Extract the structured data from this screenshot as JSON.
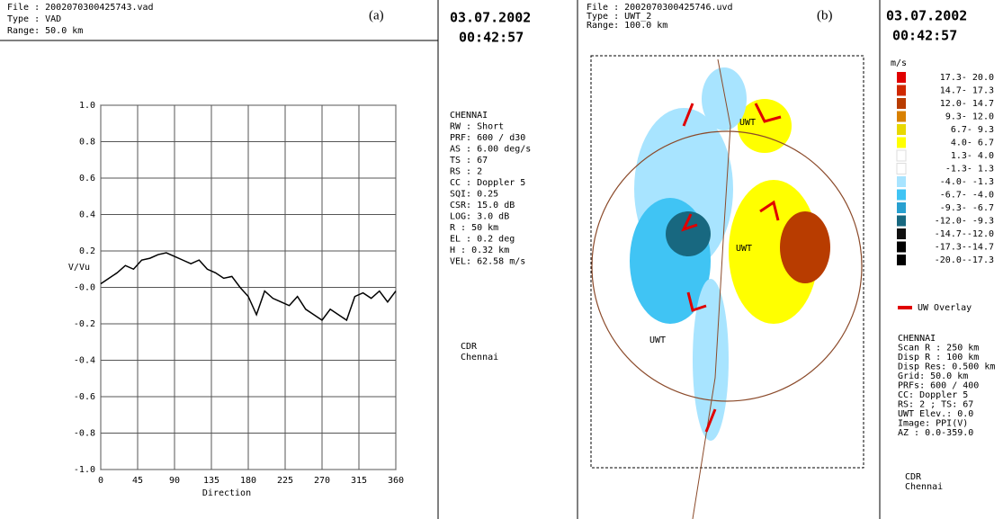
{
  "chart_data": {
    "type": "line",
    "panel_label": "(a)",
    "y_label": "V/Vu",
    "x_label": "Direction",
    "x": [
      0,
      10,
      20,
      30,
      40,
      50,
      60,
      70,
      80,
      90,
      100,
      110,
      120,
      130,
      140,
      150,
      160,
      170,
      180,
      190,
      200,
      210,
      220,
      230,
      240,
      250,
      260,
      270,
      280,
      290,
      300,
      310,
      320,
      330,
      340,
      350,
      360
    ],
    "values": [
      0.02,
      0.05,
      0.08,
      0.12,
      0.1,
      0.15,
      0.16,
      0.18,
      0.19,
      0.17,
      0.15,
      0.13,
      0.15,
      0.1,
      0.08,
      0.05,
      0.06,
      0.0,
      -0.05,
      -0.15,
      -0.02,
      -0.06,
      -0.08,
      -0.1,
      -0.05,
      -0.12,
      -0.15,
      -0.18,
      -0.12,
      -0.15,
      -0.18,
      -0.05,
      -0.03,
      -0.06,
      -0.02,
      -0.08,
      -0.02
    ],
    "color": "#000000",
    "xlim": [
      0,
      360
    ],
    "xticks": [
      0,
      45,
      90,
      135,
      180,
      225,
      270,
      315,
      360
    ],
    "ylim": [
      -1,
      1
    ],
    "yticks": [
      {
        "value": -1,
        "label": "-1.0"
      },
      {
        "value": -0.8,
        "label": "-0.8"
      },
      {
        "value": -0.6,
        "label": "-0.6"
      },
      {
        "value": -0.4,
        "label": "-0.4"
      },
      {
        "value": -0.2,
        "label": "-0.2"
      },
      {
        "value": 0,
        "label": "-0.0"
      },
      {
        "value": 0.2,
        "label": "0.2"
      },
      {
        "value": 0.4,
        "label": "0.4"
      },
      {
        "value": 0.6,
        "label": "0.6"
      },
      {
        "value": 0.8,
        "label": "0.8"
      },
      {
        "value": 1,
        "label": "1.0"
      }
    ],
    "grid": true
  },
  "panel_a_header": [
    "File : 2002070300425743.vad",
    "Type : VAD",
    "Range:  50.0 km"
  ],
  "middle_column": {
    "date": "03.07.2002",
    "time": "00:42:57",
    "params": [
      "CHENNAI",
      "RW : Short",
      "PRF:  600 / d30",
      "AS : 6.00 deg/s",
      "TS : 67",
      "RS : 2",
      "CC : Doppler 5",
      "SQI: 0.25",
      "CSR: 15.0 dB",
      "LOG: 3.0 dB",
      "R  :   50 km",
      "EL :   0.2 deg",
      "H  :  0.32 km",
      "VEL:  62.58 m/s"
    ],
    "footer": [
      "CDR",
      "Chennai"
    ]
  },
  "panel_b": {
    "panel_label": "(b)",
    "header": [
      "File : 2002070300425746.uvd",
      "Type : UWT_2",
      "Range: 100.0 km"
    ],
    "markers": [
      "UWT",
      "UWT",
      "UWT"
    ]
  },
  "right_column": {
    "date": "03.07.2002",
    "time": "00:42:57",
    "unit": "m/s",
    "legend": [
      {
        "label": "17.3- 20.0",
        "color": "#e00000"
      },
      {
        "label": "14.7- 17.3",
        "color": "#d02800"
      },
      {
        "label": "12.0- 14.7",
        "color": "#b83c00"
      },
      {
        "label": "9.3- 12.0",
        "color": "#d88000"
      },
      {
        "label": "6.7-  9.3",
        "color": "#e8d800"
      },
      {
        "label": "4.0-  6.7",
        "color": "#ffff00"
      },
      {
        "label": "1.3-  4.0",
        "color": "#ffffff"
      },
      {
        "label": "-1.3-  1.3",
        "color": "#ffffff"
      },
      {
        "label": "-4.0- -1.3",
        "color": "#a8e4ff"
      },
      {
        "label": "-6.7- -4.0",
        "color": "#40c4f4"
      },
      {
        "label": "-9.3- -6.7",
        "color": "#28a0d0"
      },
      {
        "label": "-12.0- -9.3",
        "color": "#186880"
      },
      {
        "label": "-14.7--12.0",
        "color": "#101010"
      },
      {
        "label": "-17.3--14.7",
        "color": "#000000"
      },
      {
        "label": "-20.0--17.3",
        "color": "#000000"
      }
    ],
    "overlay": "UW Overlay",
    "params": [
      "CHENNAI",
      "Scan R   : 250 km",
      "Disp R   : 100 km",
      "Disp Res: 0.500 km",
      "Grid: 50.0 km",
      "PRFs: 600 / 400",
      "CC: Doppler 5",
      "RS: 2 ;  TS: 67",
      "UWT Elev.: 0.0",
      "Image: PPI(V)",
      "AZ :    0.0-359.0"
    ],
    "footer": [
      "CDR",
      "Chennai"
    ]
  }
}
